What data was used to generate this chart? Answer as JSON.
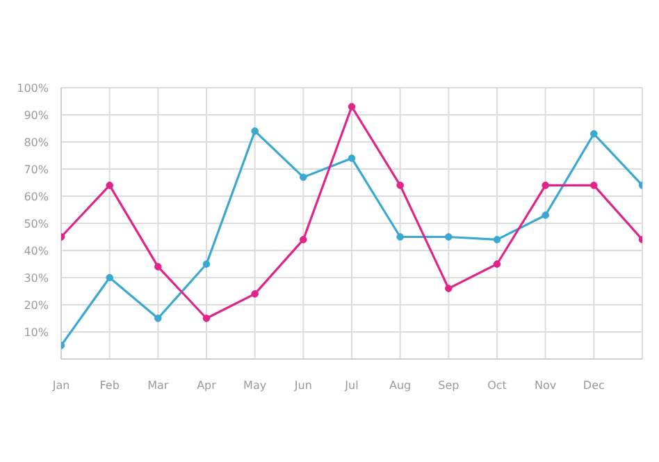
{
  "chart_data": {
    "type": "line",
    "marker": "circle",
    "grid": true,
    "legend": false,
    "categories": [
      "Jan",
      "Feb",
      "Mar",
      "Apr",
      "May",
      "Jun",
      "Jul",
      "Aug",
      "Sep",
      "Oct",
      "Nov",
      "Dec",
      null
    ],
    "ylim": [
      0,
      100
    ],
    "yticks": [
      {
        "value": 0,
        "label": null
      },
      {
        "value": 10,
        "label": "10%"
      },
      {
        "value": 20,
        "label": "20%"
      },
      {
        "value": 30,
        "label": "30%"
      },
      {
        "value": 40,
        "label": "40%"
      },
      {
        "value": 50,
        "label": "50%"
      },
      {
        "value": 60,
        "label": "60%"
      },
      {
        "value": 70,
        "label": "70%"
      },
      {
        "value": 80,
        "label": "80%"
      },
      {
        "value": 90,
        "label": "90%"
      },
      {
        "value": 100,
        "label": "100%"
      }
    ],
    "series": [
      {
        "color": "#3aa8d0",
        "values": [
          5,
          30,
          15,
          35,
          84,
          67,
          74,
          45,
          45,
          44,
          53,
          83,
          64
        ]
      },
      {
        "color": "#e0248a",
        "values": [
          45,
          64,
          34,
          15,
          24,
          44,
          93,
          64,
          26,
          35,
          64,
          64,
          44
        ]
      }
    ]
  }
}
